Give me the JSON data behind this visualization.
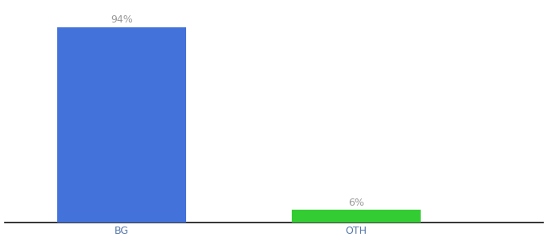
{
  "categories": [
    "BG",
    "OTH"
  ],
  "values": [
    94,
    6
  ],
  "bar_colors": [
    "#4472db",
    "#33cc33"
  ],
  "label_texts": [
    "94%",
    "6%"
  ],
  "ylim": [
    0,
    105
  ],
  "bg_color": "#ffffff",
  "label_color": "#999999",
  "tick_label_color": "#5577aa",
  "axis_line_color": "#111111",
  "label_fontsize": 9,
  "tick_fontsize": 9,
  "x_positions": [
    1,
    2
  ],
  "bar_width": 0.55,
  "xlim": [
    0.5,
    2.8
  ]
}
